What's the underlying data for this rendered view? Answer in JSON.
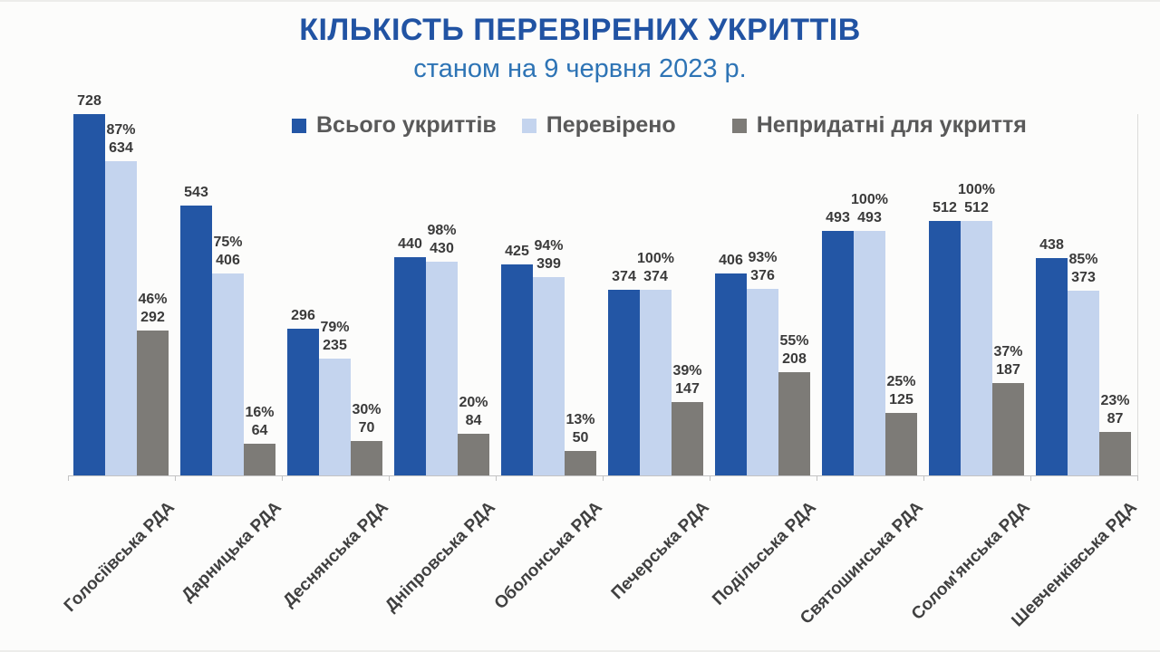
{
  "title": "КІЛЬКІСТЬ ПЕРЕВІРЕНИХ УКРИТТІВ",
  "subtitle": "станом на 9 червня 2023 р.",
  "legend": [
    {
      "label": "Всього укриттів",
      "color": "#2356a5"
    },
    {
      "label": "Перевірено",
      "color": "#c4d4ee"
    },
    {
      "label": "Непридатні для укриття",
      "color": "#7d7b77"
    }
  ],
  "chart_data": {
    "type": "bar",
    "title": "КІЛЬКІСТЬ ПЕРЕВІРЕНИХ УКРИТТІВ",
    "subtitle": "станом на 9 червня 2023 р.",
    "legend_position": "top",
    "grid": false,
    "data_labels": true,
    "ylim": [
      0,
      728
    ],
    "categories": [
      "Голосіївська РДА",
      "Дарницька РДА",
      "Деснянська РДА",
      "Дніпровська РДА",
      "Оболонська РДА",
      "Печерська РДА",
      "Подільська РДА",
      "Святошинська РДА",
      "Солом'янська РДА",
      "Шевченківська РДА"
    ],
    "series": [
      {
        "name": "Всього укриттів",
        "color": "#2356a5",
        "values": [
          728,
          543,
          296,
          440,
          425,
          374,
          406,
          493,
          512,
          438
        ]
      },
      {
        "name": "Перевірено",
        "color": "#c4d4ee",
        "values": [
          634,
          406,
          235,
          430,
          399,
          374,
          376,
          493,
          512,
          373
        ],
        "percent_labels": [
          "87%",
          "75%",
          "79%",
          "98%",
          "94%",
          "100%",
          "93%",
          "100%",
          "100%",
          "85%"
        ]
      },
      {
        "name": "Непридатні для укриття",
        "color": "#7d7b77",
        "values": [
          292,
          64,
          70,
          84,
          50,
          147,
          208,
          125,
          187,
          87
        ],
        "percent_labels": [
          "46%",
          "16%",
          "30%",
          "20%",
          "13%",
          "39%",
          "55%",
          "25%",
          "37%",
          "23%"
        ]
      }
    ]
  }
}
